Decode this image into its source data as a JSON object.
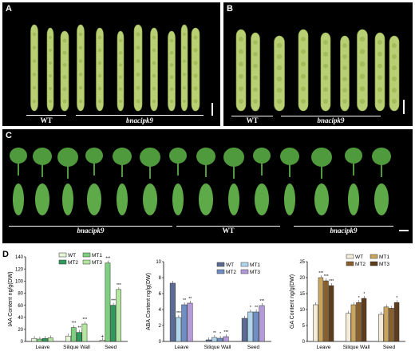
{
  "panels": {
    "A": {
      "label": "A",
      "groups": [
        "WT",
        "bnacipk9"
      ],
      "pod_count": 11
    },
    "B": {
      "label": "B",
      "groups": [
        "WT",
        "bnacipk9"
      ],
      "pod_count": 9
    },
    "C": {
      "label": "C",
      "groups": [
        "bnacipk9",
        "WT",
        "bnacipk9"
      ]
    },
    "D": {
      "label": "D"
    }
  },
  "colors": {
    "panel_bg": "#000000",
    "pod": "#b9cf73",
    "leaf": "#4f9a3c",
    "iaa": [
      "#e6f5d8",
      "#7fcf80",
      "#2f9a5c",
      "#b5e6a0"
    ],
    "aba": [
      "#5b6b93",
      "#b0d6ee",
      "#6f8fc4",
      "#b49ad8"
    ],
    "ga": [
      "#f4ecd8",
      "#c9a55e",
      "#8a5f2e",
      "#5e3d1c"
    ]
  },
  "chart_data": [
    {
      "type": "bar",
      "ylabel": "IAA Content ng/g(DW)",
      "categories": [
        "Leave",
        "Silique Wall",
        "Seed"
      ],
      "yticks": [
        "0",
        "20",
        "40",
        "60",
        "80",
        "100",
        "120",
        "140"
      ],
      "ylim": [
        0,
        140
      ],
      "legend": [
        "WT",
        "MT1",
        "MT2",
        "MT3"
      ],
      "series": [
        {
          "name": "WT",
          "values": [
            5,
            9,
            2
          ]
        },
        {
          "name": "MT1",
          "values": [
            4,
            23,
            130
          ]
        },
        {
          "name": "MT2",
          "values": [
            5,
            15,
            60
          ]
        },
        {
          "name": "MT3",
          "values": [
            6,
            29,
            86
          ]
        }
      ],
      "sig": [
        [
          "",
          "",
          ""
        ],
        [
          "",
          "***",
          "***"
        ],
        [
          "",
          "**",
          "***"
        ],
        [
          "",
          "***",
          "***"
        ]
      ],
      "wt_seed_marker": "+"
    },
    {
      "type": "bar",
      "ylabel": "ABA Content ng/g(DW)",
      "categories": [
        "Leave",
        "Silique Wall",
        "Seed"
      ],
      "yticks": [
        "0",
        "2",
        "4",
        "6",
        "8",
        "10"
      ],
      "ylim": [
        0,
        10
      ],
      "legend": [
        "WT",
        "MT1",
        "MT2",
        "MT3"
      ],
      "series": [
        {
          "name": "WT",
          "values": [
            7.3,
            0.2,
            2.9
          ]
        },
        {
          "name": "MT1",
          "values": [
            3.0,
            0.5,
            3.7
          ]
        },
        {
          "name": "MT2",
          "values": [
            4.6,
            0.4,
            3.7
          ]
        },
        {
          "name": "MT3",
          "values": [
            4.8,
            0.6,
            4.5
          ]
        }
      ],
      "sig": [
        [
          "",
          "",
          ""
        ],
        [
          "***",
          "**",
          "*"
        ],
        [
          "**",
          "*",
          "**"
        ],
        [
          "**",
          "***",
          "***"
        ]
      ]
    },
    {
      "type": "bar",
      "ylabel": "GA Content ng/g(DW)",
      "categories": [
        "Leave",
        "Silique Wall",
        "Seed"
      ],
      "yticks": [
        "0",
        "5",
        "10",
        "15",
        "20",
        "25"
      ],
      "ylim": [
        0,
        25
      ],
      "legend": [
        "WT",
        "MT1",
        "MT2",
        "MT3"
      ],
      "series": [
        {
          "name": "WT",
          "values": [
            11.5,
            8.8,
            8.5
          ]
        },
        {
          "name": "MT1",
          "values": [
            20,
            11.5,
            10.8
          ]
        },
        {
          "name": "MT2",
          "values": [
            19,
            12.2,
            10.4
          ]
        },
        {
          "name": "MT3",
          "values": [
            17.5,
            13.5,
            12.2
          ]
        }
      ],
      "sig": [
        [
          "",
          "",
          ""
        ],
        [
          "***",
          "",
          ""
        ],
        [
          "***",
          "*",
          ""
        ],
        [
          "***",
          "*",
          "*"
        ]
      ]
    }
  ]
}
